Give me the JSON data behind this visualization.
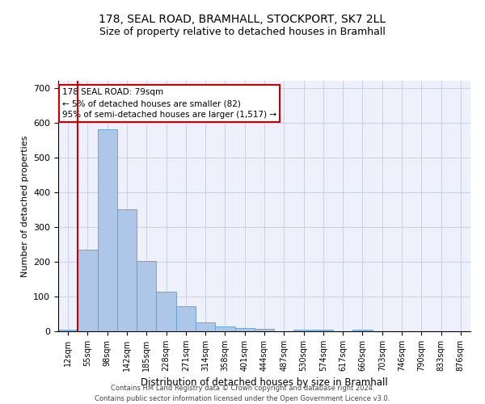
{
  "title1": "178, SEAL ROAD, BRAMHALL, STOCKPORT, SK7 2LL",
  "title2": "Size of property relative to detached houses in Bramhall",
  "xlabel": "Distribution of detached houses by size in Bramhall",
  "ylabel": "Number of detached properties",
  "footer1": "Contains HM Land Registry data © Crown copyright and database right 2024.",
  "footer2": "Contains public sector information licensed under the Open Government Licence v3.0.",
  "annotation_line1": "178 SEAL ROAD: 79sqm",
  "annotation_line2": "← 5% of detached houses are smaller (82)",
  "annotation_line3": "95% of semi-detached houses are larger (1,517) →",
  "bar_labels": [
    "12sqm",
    "55sqm",
    "98sqm",
    "142sqm",
    "185sqm",
    "228sqm",
    "271sqm",
    "314sqm",
    "358sqm",
    "401sqm",
    "444sqm",
    "487sqm",
    "530sqm",
    "574sqm",
    "617sqm",
    "660sqm",
    "703sqm",
    "746sqm",
    "790sqm",
    "833sqm",
    "876sqm"
  ],
  "bar_values": [
    5,
    235,
    580,
    350,
    203,
    114,
    72,
    25,
    14,
    10,
    7,
    0,
    5,
    4,
    0,
    5,
    0,
    0,
    0,
    0,
    0
  ],
  "bar_color": "#aec6e8",
  "bar_edge_color": "#5a9fd4",
  "vline_x_index": 1,
  "vline_color": "#cc0000",
  "annotation_box_color": "#cc0000",
  "ylim": [
    0,
    720
  ],
  "yticks": [
    0,
    100,
    200,
    300,
    400,
    500,
    600,
    700
  ],
  "bg_color": "#eef1fb",
  "grid_color": "#c8d0e8",
  "title_fontsize": 10,
  "subtitle_fontsize": 9
}
